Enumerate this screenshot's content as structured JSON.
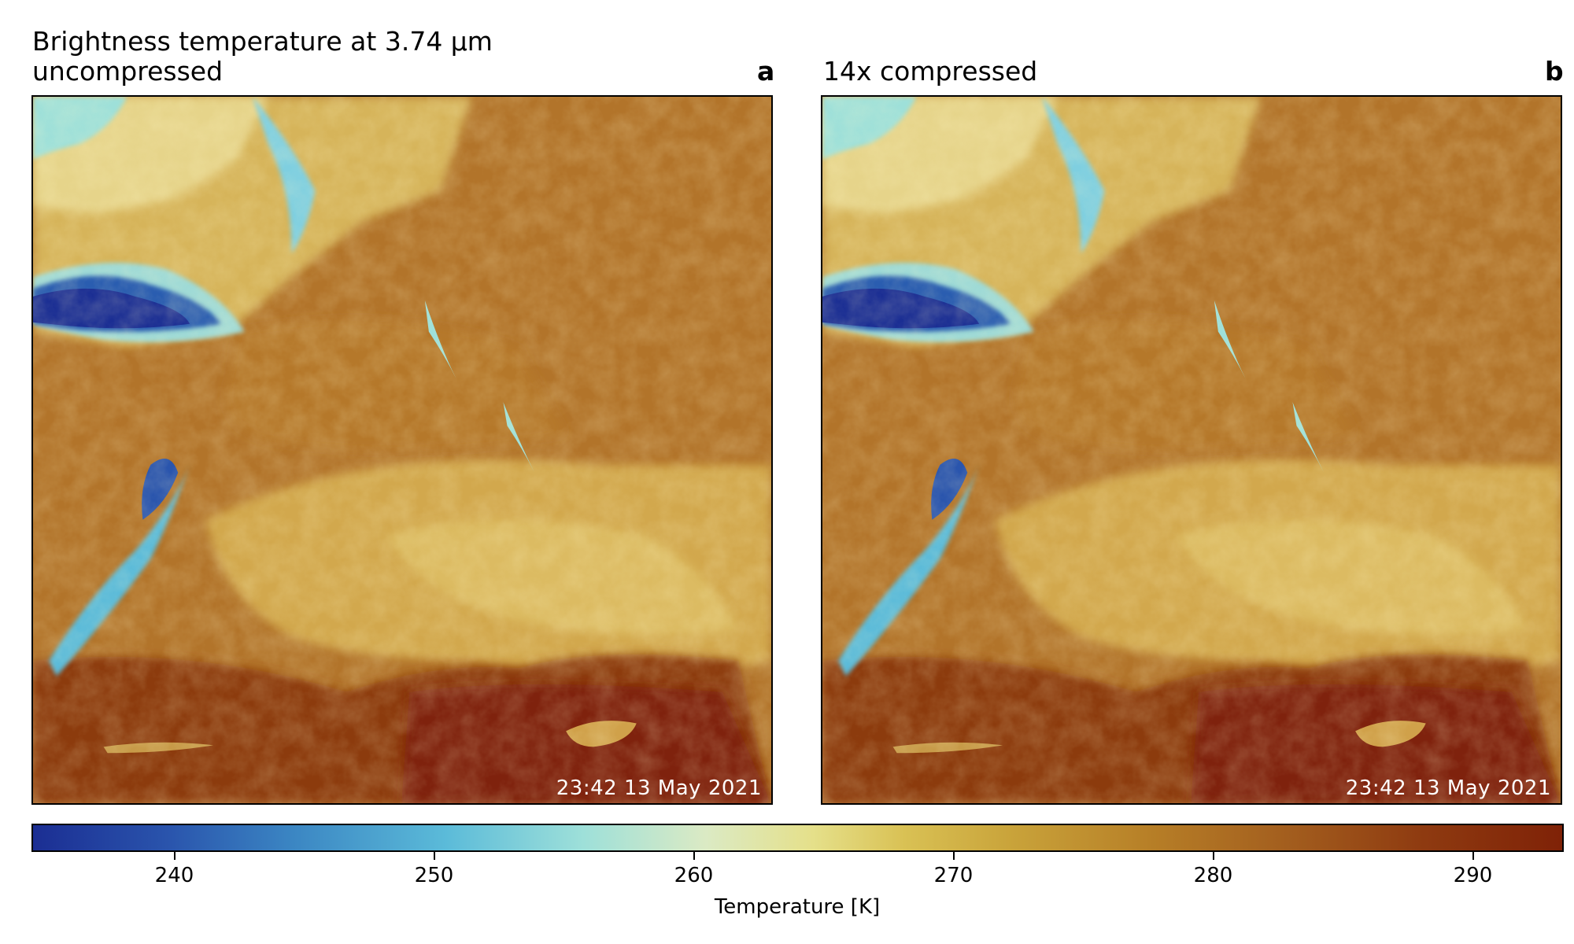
{
  "figure": {
    "title": "Brightness temperature at 3.74 µm",
    "panels": [
      {
        "subtitle": "uncompressed",
        "letter": "a",
        "timestamp": "23:42 13 May 2021"
      },
      {
        "subtitle": "14x compressed",
        "letter": "b",
        "timestamp": "23:42 13 May 2021"
      }
    ]
  },
  "colorbar": {
    "label": "Temperature [K]",
    "range": [
      234.5,
      293.5
    ],
    "ticks": [
      "240",
      "250",
      "260",
      "270",
      "280",
      "290"
    ],
    "colormap_colors": [
      "#1b2e93",
      "#3b86c3",
      "#9ee0d9",
      "#e5e08a",
      "#c9a33a",
      "#a35e1e",
      "#7f2207"
    ]
  }
}
